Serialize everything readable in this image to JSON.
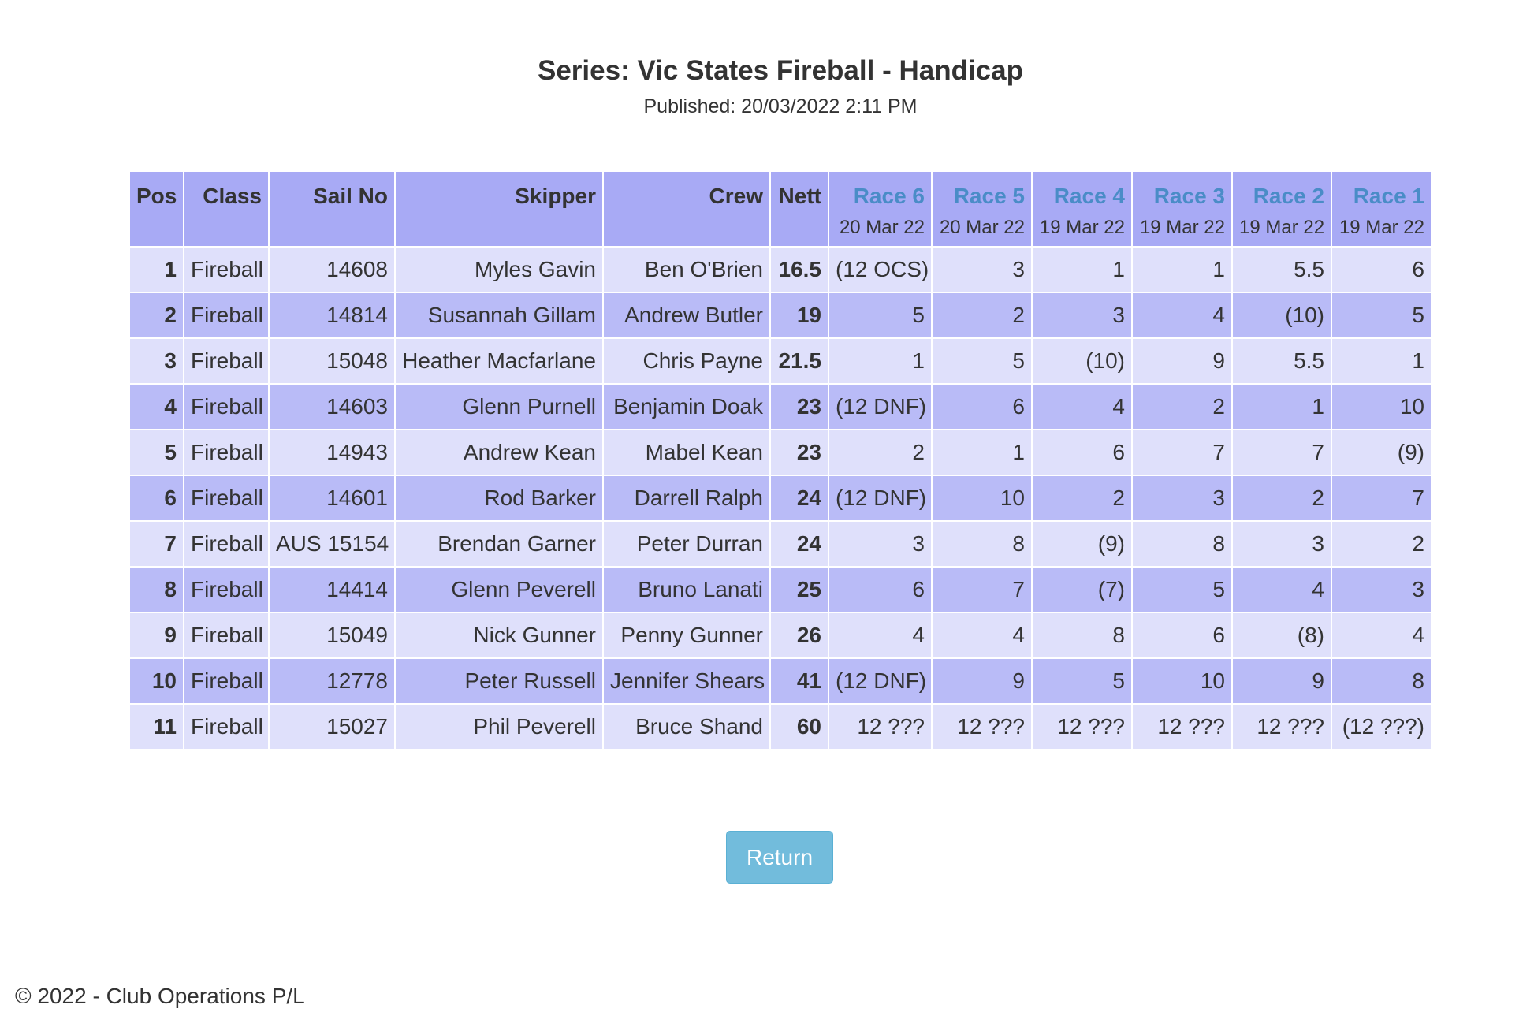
{
  "header": {
    "title": "Series: Vic States Fireball - Handicap",
    "published": "Published: 20/03/2022 2:11 PM"
  },
  "table": {
    "columns": {
      "pos": "Pos",
      "class": "Class",
      "sail_no": "Sail No",
      "skipper": "Skipper",
      "crew": "Crew",
      "nett": "Nett"
    },
    "races": [
      {
        "label": "Race 6",
        "date": "20 Mar 22"
      },
      {
        "label": "Race 5",
        "date": "20 Mar 22"
      },
      {
        "label": "Race 4",
        "date": "19 Mar 22"
      },
      {
        "label": "Race 3",
        "date": "19 Mar 22"
      },
      {
        "label": "Race 2",
        "date": "19 Mar 22"
      },
      {
        "label": "Race 1",
        "date": "19 Mar 22"
      }
    ],
    "rows": [
      {
        "pos": "1",
        "class": "Fireball",
        "sail_no": "14608",
        "skipper": "Myles Gavin",
        "crew": "Ben O'Brien",
        "nett": "16.5",
        "r": [
          "(12 OCS)",
          "3",
          "1",
          "1",
          "5.5",
          "6"
        ]
      },
      {
        "pos": "2",
        "class": "Fireball",
        "sail_no": "14814",
        "skipper": "Susannah Gillam",
        "crew": "Andrew Butler",
        "nett": "19",
        "r": [
          "5",
          "2",
          "3",
          "4",
          "(10)",
          "5"
        ]
      },
      {
        "pos": "3",
        "class": "Fireball",
        "sail_no": "15048",
        "skipper": "Heather Macfarlane",
        "crew": "Chris Payne",
        "nett": "21.5",
        "r": [
          "1",
          "5",
          "(10)",
          "9",
          "5.5",
          "1"
        ]
      },
      {
        "pos": "4",
        "class": "Fireball",
        "sail_no": "14603",
        "skipper": "Glenn Purnell",
        "crew": "Benjamin Doak",
        "nett": "23",
        "r": [
          "(12 DNF)",
          "6",
          "4",
          "2",
          "1",
          "10"
        ]
      },
      {
        "pos": "5",
        "class": "Fireball",
        "sail_no": "14943",
        "skipper": "Andrew Kean",
        "crew": "Mabel Kean",
        "nett": "23",
        "r": [
          "2",
          "1",
          "6",
          "7",
          "7",
          "(9)"
        ]
      },
      {
        "pos": "6",
        "class": "Fireball",
        "sail_no": "14601",
        "skipper": "Rod Barker",
        "crew": "Darrell Ralph",
        "nett": "24",
        "r": [
          "(12 DNF)",
          "10",
          "2",
          "3",
          "2",
          "7"
        ]
      },
      {
        "pos": "7",
        "class": "Fireball",
        "sail_no": "AUS 15154",
        "skipper": "Brendan Garner",
        "crew": "Peter Durran",
        "nett": "24",
        "r": [
          "3",
          "8",
          "(9)",
          "8",
          "3",
          "2"
        ]
      },
      {
        "pos": "8",
        "class": "Fireball",
        "sail_no": "14414",
        "skipper": "Glenn Peverell",
        "crew": "Bruno Lanati",
        "nett": "25",
        "r": [
          "6",
          "7",
          "(7)",
          "5",
          "4",
          "3"
        ]
      },
      {
        "pos": "9",
        "class": "Fireball",
        "sail_no": "15049",
        "skipper": "Nick Gunner",
        "crew": "Penny Gunner",
        "nett": "26",
        "r": [
          "4",
          "4",
          "8",
          "6",
          "(8)",
          "4"
        ]
      },
      {
        "pos": "10",
        "class": "Fireball",
        "sail_no": "12778",
        "skipper": "Peter Russell",
        "crew": "Jennifer Shears",
        "nett": "41",
        "r": [
          "(12 DNF)",
          "9",
          "5",
          "10",
          "9",
          "8"
        ]
      },
      {
        "pos": "11",
        "class": "Fireball",
        "sail_no": "15027",
        "skipper": "Phil Peverell",
        "crew": "Bruce Shand",
        "nett": "60",
        "r": [
          "12 ???",
          "12 ???",
          "12 ???",
          "12 ???",
          "12 ???",
          "(12 ???)"
        ]
      }
    ]
  },
  "actions": {
    "return_label": "Return"
  },
  "footer": {
    "copyright": "© 2022 - Club Operations P/L"
  },
  "colors": {
    "header_bg": "#a8aaf5",
    "row_light": "#dfe0fb",
    "row_dark": "#b9bbf7",
    "race_link": "#4a8cc7",
    "button": "#72bcdc"
  }
}
